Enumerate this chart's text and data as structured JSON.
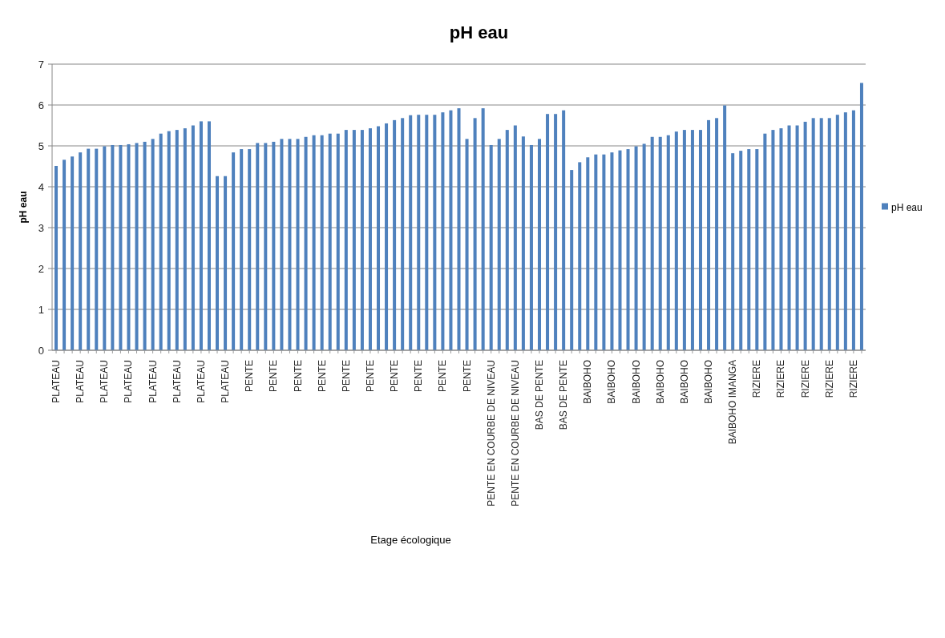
{
  "chart_data": {
    "type": "bar",
    "title": "pH eau",
    "xlabel": "Etage écologique",
    "ylabel": "pH eau",
    "categories": [
      "PLATEAU",
      null,
      null,
      "PLATEAU",
      null,
      null,
      "PLATEAU",
      null,
      null,
      "PLATEAU",
      null,
      null,
      "PLATEAU",
      null,
      null,
      "PLATEAU",
      null,
      null,
      "PLATEAU",
      null,
      null,
      "PLATEAU",
      null,
      null,
      "PENTE",
      null,
      null,
      "PENTE",
      null,
      null,
      "PENTE",
      null,
      null,
      "PENTE",
      null,
      null,
      "PENTE",
      null,
      null,
      "PENTE",
      null,
      null,
      "PENTE",
      null,
      null,
      "PENTE",
      null,
      null,
      "PENTE",
      null,
      null,
      "PENTE",
      null,
      null,
      "PENTE EN COURBE DE NIVEAU",
      null,
      null,
      "PENTE EN COURBE DE NIVEAU",
      null,
      null,
      "BAS DE PENTE",
      null,
      null,
      "BAS DE PENTE",
      null,
      null,
      "BAIBOHO",
      null,
      null,
      "BAIBOHO",
      null,
      null,
      "BAIBOHO",
      null,
      null,
      "BAIBOHO",
      null,
      null,
      "BAIBOHO",
      null,
      null,
      "BAIBOHO",
      null,
      null,
      "BAIBOHO IMANGA",
      null,
      null,
      "RIZIERE",
      null,
      null,
      "RIZIERE",
      null,
      null,
      "RIZIERE",
      null,
      null,
      "RIZIERE",
      null,
      null,
      "RIZIERE",
      null
    ],
    "series": [
      {
        "name": "pH eau",
        "color": "#4f81bd",
        "values": [
          4.51,
          4.66,
          4.74,
          4.84,
          4.93,
          4.93,
          4.99,
          5.02,
          5.02,
          5.04,
          5.07,
          5.1,
          5.17,
          5.3,
          5.36,
          5.39,
          5.43,
          5.5,
          5.6,
          5.6,
          4.26,
          4.26,
          4.84,
          4.92,
          4.92,
          5.07,
          5.07,
          5.1,
          5.17,
          5.17,
          5.17,
          5.22,
          5.26,
          5.26,
          5.3,
          5.3,
          5.39,
          5.39,
          5.39,
          5.43,
          5.48,
          5.55,
          5.63,
          5.68,
          5.75,
          5.76,
          5.76,
          5.76,
          5.82,
          5.87,
          5.92,
          5.17,
          5.68,
          5.92,
          5.02,
          5.17,
          5.39,
          5.5,
          5.23,
          5.02,
          5.17,
          5.78,
          5.78,
          5.87,
          4.41,
          4.6,
          4.72,
          4.79,
          4.79,
          4.84,
          4.89,
          4.92,
          4.99,
          5.05,
          5.22,
          5.22,
          5.26,
          5.35,
          5.39,
          5.39,
          5.39,
          5.63,
          5.68,
          5.99,
          4.82,
          4.88,
          4.92,
          4.92,
          5.3,
          5.39,
          5.43,
          5.5,
          5.5,
          5.59,
          5.68,
          5.68,
          5.68,
          5.76,
          5.82,
          5.87,
          6.54
        ]
      }
    ],
    "ylim": [
      0,
      7
    ],
    "yticks": [
      0,
      1,
      2,
      3,
      4,
      5,
      6,
      7
    ],
    "grid": "y",
    "legend": "right"
  }
}
